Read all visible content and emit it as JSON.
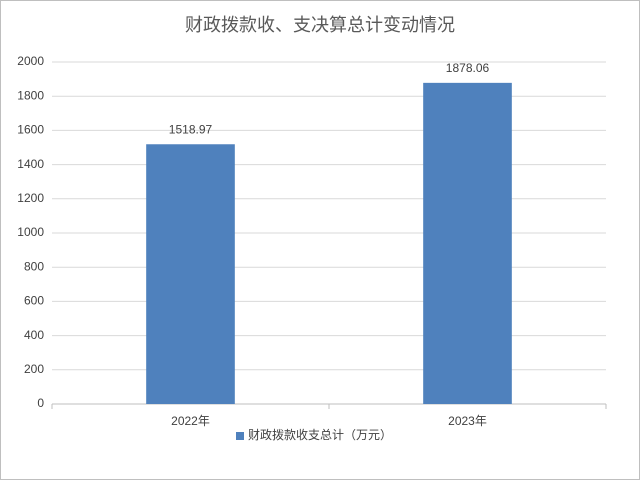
{
  "chart_data": {
    "type": "bar",
    "title": "财政拨款收、支决算总计变动情况",
    "categories": [
      "2022年",
      "2023年"
    ],
    "series": [
      {
        "name": "财政拨款收支总计（万元）",
        "color": "#4f81bd",
        "values": [
          1518.97,
          1878.06
        ]
      }
    ],
    "ylim": [
      0,
      2000
    ],
    "yticks": [
      0,
      200,
      400,
      600,
      800,
      1000,
      1200,
      1400,
      1600,
      1800,
      2000
    ],
    "grid": true,
    "legend": "bottom"
  }
}
